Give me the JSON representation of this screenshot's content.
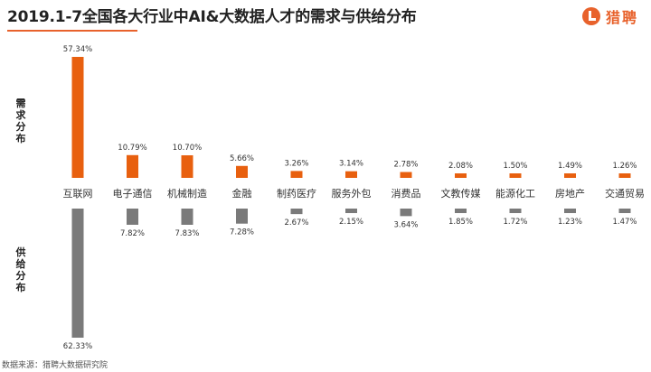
{
  "title": "2019.1-7全国各大行业中AI&大数据人才的需求与供给分布",
  "logo": {
    "text": "猎聘",
    "icon": "liepin-logo-icon"
  },
  "demand_label": "需求分布",
  "supply_label": "供给分布",
  "source": "数据来源：猎聘大数据研究院",
  "colors": {
    "demand": "#e8600f",
    "supply": "#7a7a7a",
    "accent": "#e8622c"
  },
  "chart_data": {
    "type": "bar",
    "categories": [
      "互联网",
      "电子通信",
      "机械制造",
      "金融",
      "制药医疗",
      "服务外包",
      "消费品",
      "文教传媒",
      "能源化工",
      "房地产",
      "交通贸易"
    ],
    "series": [
      {
        "name": "需求分布",
        "values": [
          57.34,
          10.79,
          10.7,
          5.66,
          3.26,
          3.14,
          2.78,
          2.08,
          1.5,
          1.49,
          1.26
        ],
        "labels": [
          "57.34%",
          "10.79%",
          "10.70%",
          "5.66%",
          "3.26%",
          "3.14%",
          "2.78%",
          "2.08%",
          "1.50%",
          "1.49%",
          "1.26%"
        ]
      },
      {
        "name": "供给分布",
        "values": [
          62.33,
          7.82,
          7.83,
          7.28,
          2.67,
          2.15,
          3.64,
          1.85,
          1.72,
          1.23,
          1.47
        ],
        "labels": [
          "62.33%",
          "7.82%",
          "7.83%",
          "7.28%",
          "2.67%",
          "2.15%",
          "3.64%",
          "1.85%",
          "1.72%",
          "1.23%",
          "1.47%"
        ]
      }
    ],
    "legend": "none",
    "grid": false
  }
}
